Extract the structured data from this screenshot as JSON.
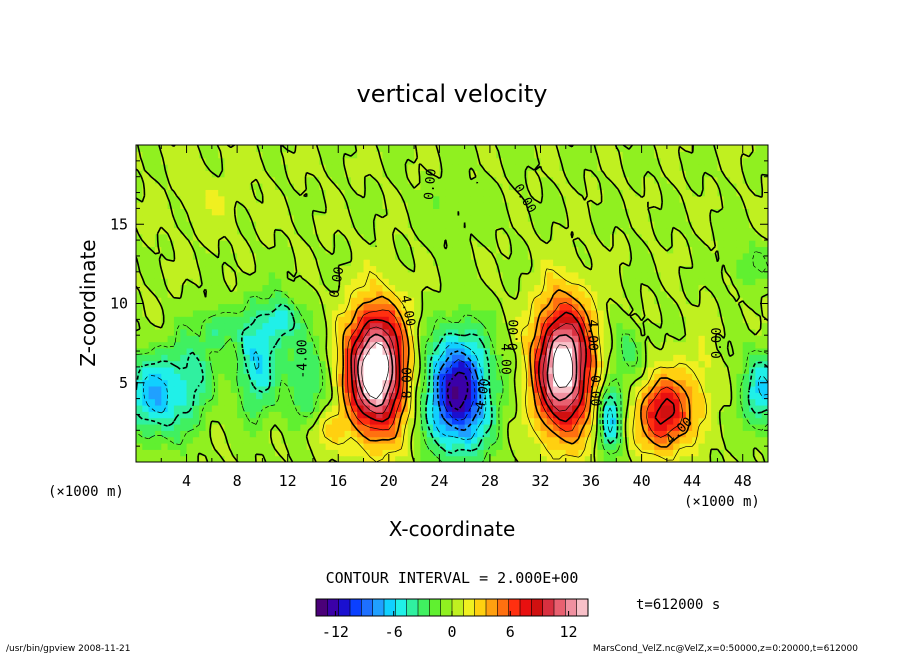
{
  "chart_data": {
    "type": "heatmap",
    "title": "vertical velocity",
    "xlabel": "X-coordinate",
    "ylabel": "Z-coordinate",
    "x_unit_left": "(×1000 m)",
    "x_unit_right": "(×1000 m)",
    "xlim": [
      0,
      50
    ],
    "ylim": [
      0,
      20
    ],
    "x_ticks": [
      4,
      8,
      12,
      16,
      20,
      24,
      28,
      32,
      36,
      40,
      44,
      48
    ],
    "y_ticks": [
      5,
      10,
      15
    ],
    "contour_interval_text": "CONTOUR INTERVAL = 2.000E+00",
    "time_text": "t=612000 s",
    "colorbar": {
      "min": -14,
      "max": 14,
      "ticks": [
        -12,
        -6,
        0,
        6,
        12
      ],
      "colors": [
        "#4a0078",
        "#3b00a8",
        "#1a10d0",
        "#0a40ff",
        "#1e70ff",
        "#20a0ff",
        "#10d0ff",
        "#20f0e8",
        "#30f0a0",
        "#40f060",
        "#60f030",
        "#90f020",
        "#c0f020",
        "#f0f020",
        "#ffd010",
        "#ffa010",
        "#ff7010",
        "#ff3010",
        "#e81010",
        "#d01010",
        "#d83040",
        "#e86070",
        "#f090a0",
        "#f8c0c8"
      ]
    },
    "field_blobs": [
      {
        "x": 1.5,
        "z": 4.2,
        "sx": 2.2,
        "sz": 2.6,
        "amp": -7
      },
      {
        "x": 4.5,
        "z": 5.5,
        "sx": 1.6,
        "sz": 3.2,
        "amp": -4
      },
      {
        "x": 6.5,
        "z": 8.5,
        "sx": 1.0,
        "sz": 1.2,
        "amp": -4
      },
      {
        "x": 9.5,
        "z": 6.5,
        "sx": 1.6,
        "sz": 3.5,
        "amp": -6
      },
      {
        "x": 11.5,
        "z": 9.0,
        "sx": 1.2,
        "sz": 1.5,
        "amp": -5
      },
      {
        "x": 13.5,
        "z": 5.0,
        "sx": 1.6,
        "sz": 3.5,
        "amp": -4
      },
      {
        "x": 14.5,
        "z": 2.0,
        "sx": 1.5,
        "sz": 1.2,
        "amp": 3
      },
      {
        "x": 19.0,
        "z": 5.8,
        "sx": 2.3,
        "sz": 3.8,
        "amp": 17
      },
      {
        "x": 25.5,
        "z": 4.4,
        "sx": 2.5,
        "sz": 3.6,
        "amp": -13
      },
      {
        "x": 33.8,
        "z": 6.0,
        "sx": 2.2,
        "sz": 4.0,
        "amp": 16
      },
      {
        "x": 37.5,
        "z": 3.0,
        "sx": 0.9,
        "sz": 2.4,
        "amp": -7
      },
      {
        "x": 39.0,
        "z": 7.0,
        "sx": 1.0,
        "sz": 1.8,
        "amp": -3
      },
      {
        "x": 41.8,
        "z": 3.0,
        "sx": 2.0,
        "sz": 2.3,
        "amp": 9
      },
      {
        "x": 44.5,
        "z": 5.0,
        "sx": 1.5,
        "sz": 2.5,
        "amp": 2
      },
      {
        "x": 49.5,
        "z": 4.5,
        "sx": 1.6,
        "sz": 2.5,
        "amp": -6
      },
      {
        "x": 48.5,
        "z": 12.5,
        "sx": 2.0,
        "sz": 1.5,
        "amp": -2
      },
      {
        "x": 6.0,
        "z": 16.5,
        "sx": 3.0,
        "sz": 2.0,
        "amp": 1
      },
      {
        "x": 25.0,
        "z": 16.0,
        "sx": 3.0,
        "sz": 2.0,
        "amp": -1
      }
    ],
    "contour_labels": [
      {
        "text": "0.00",
        "x": 16.2,
        "z": 11.3,
        "rot": -80
      },
      {
        "text": "-4.00",
        "x": 13.5,
        "z": 6.5,
        "rot": -90
      },
      {
        "text": "4.00",
        "x": 21.2,
        "z": 9.5,
        "rot": 80
      },
      {
        "text": "8.00",
        "x": 21.8,
        "z": 5.0,
        "rot": -90
      },
      {
        "text": "0.00",
        "x": 23.6,
        "z": 17.5,
        "rot": -85
      },
      {
        "text": "0.00",
        "x": 30.5,
        "z": 16.5,
        "rot": 60
      },
      {
        "text": "0.00",
        "x": 30.2,
        "z": 8.0,
        "rot": -88
      },
      {
        "text": "4.00",
        "x": 28.9,
        "z": 6.5,
        "rot": 90
      },
      {
        "text": "-4.00",
        "x": 27.7,
        "z": 4.0,
        "rot": -80
      },
      {
        "text": "4.00",
        "x": 35.8,
        "z": 8.0,
        "rot": 90
      },
      {
        "text": "0.00",
        "x": 36.0,
        "z": 4.5,
        "rot": 90
      },
      {
        "text": "0.00",
        "x": 46.3,
        "z": 7.5,
        "rot": -90
      },
      {
        "text": "4.00",
        "x": 43.2,
        "z": 1.8,
        "rot": -45
      }
    ],
    "grid": false,
    "legend": "colorbar-bottom"
  },
  "footer": {
    "left": "/usr/bin/gpview   2008-11-21",
    "right": "MarsCond_VelZ.nc@VelZ,x=0:50000,z=0:20000,t=612000"
  }
}
